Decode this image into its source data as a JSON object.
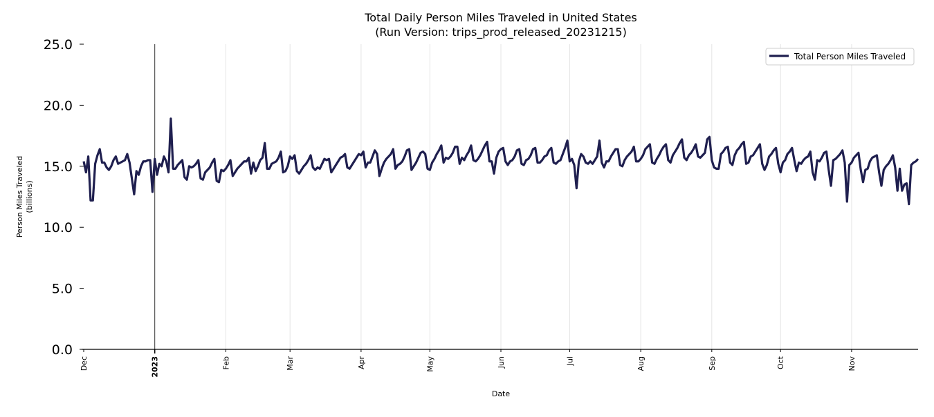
{
  "chart_data": {
    "type": "line",
    "title": "Total Daily Person Miles Traveled in United States",
    "subtitle": "(Run Version: trips_prod_released_20231215)",
    "xlabel": "Date",
    "ylabel": "Person Miles Traveled",
    "ylabel_unit": "(billions)",
    "ylim": [
      0,
      25
    ],
    "yticks": [
      "0.0",
      "5.0",
      "10.0",
      "15.0",
      "20.0",
      "25.0"
    ],
    "xticks": [
      "Dec",
      "2023",
      "Feb",
      "Mar",
      "Apr",
      "May",
      "Jun",
      "Jul",
      "Aug",
      "Sep",
      "Oct",
      "Nov"
    ],
    "grid": "vertical at month ticks",
    "legend_position": "top-right",
    "line_color": "#1f1f4f",
    "series": [
      {
        "name": "Total Person Miles Traveled",
        "months": [
          {
            "month": "2022-12",
            "values": [
              15.4,
              14.5,
              15.8,
              12.2,
              12.2,
              15.2,
              15.9,
              16.4,
              15.3,
              15.3,
              14.9,
              14.7,
              15.0,
              15.5,
              15.8,
              15.2,
              15.3,
              15.4,
              15.5,
              16.0,
              15.3,
              14.0,
              12.7,
              14.6,
              14.3,
              15.0,
              15.4,
              15.4,
              15.5,
              15.5,
              12.9
            ]
          },
          {
            "month": "2023-01",
            "values": [
              15.6,
              14.3,
              15.2,
              15.0,
              15.8,
              15.4,
              14.5,
              18.9,
              14.8,
              14.8,
              15.1,
              15.3,
              15.5,
              14.1,
              13.9,
              15.0,
              14.9,
              15.0,
              15.2,
              15.5,
              14.0,
              13.9,
              14.5,
              14.7,
              14.9,
              15.3,
              15.6,
              13.8,
              13.7,
              14.7,
              14.6
            ]
          },
          {
            "month": "2023-02",
            "values": [
              14.8,
              15.1,
              15.5,
              14.2,
              14.5,
              14.8,
              15.0,
              15.2,
              15.4,
              15.4,
              15.7,
              14.4,
              15.3,
              14.6,
              15.0,
              15.5,
              15.7,
              16.9,
              14.8,
              14.8,
              15.2,
              15.3,
              15.4,
              15.7,
              16.2,
              14.5,
              14.6,
              15.0
            ]
          },
          {
            "month": "2023-03",
            "values": [
              15.8,
              15.6,
              15.9,
              14.6,
              14.4,
              14.7,
              15.0,
              15.2,
              15.5,
              15.9,
              14.9,
              14.7,
              14.9,
              14.8,
              15.2,
              15.6,
              15.5,
              15.6,
              14.5,
              14.8,
              15.1,
              15.4,
              15.7,
              15.8,
              16.0,
              14.9,
              14.8,
              15.1,
              15.4,
              15.7,
              16.0
            ]
          },
          {
            "month": "2023-04",
            "values": [
              15.9,
              16.2,
              14.9,
              15.3,
              15.3,
              15.8,
              16.3,
              16.0,
              14.2,
              14.8,
              15.3,
              15.6,
              15.8,
              16.0,
              16.4,
              14.8,
              15.1,
              15.2,
              15.4,
              15.8,
              16.3,
              16.4,
              14.7,
              15.0,
              15.3,
              15.7,
              16.1,
              16.2,
              16.0,
              14.8
            ]
          },
          {
            "month": "2023-05",
            "values": [
              14.7,
              15.3,
              15.6,
              16.0,
              16.3,
              16.7,
              15.3,
              15.7,
              15.6,
              15.8,
              16.1,
              16.6,
              16.6,
              15.2,
              15.7,
              15.5,
              15.9,
              16.2,
              16.7,
              15.5,
              15.4,
              15.6,
              15.9,
              16.3,
              16.7,
              17.0,
              15.4,
              15.4,
              14.4,
              15.7,
              16.2
            ]
          },
          {
            "month": "2023-06",
            "values": [
              16.4,
              16.5,
              15.4,
              15.1,
              15.4,
              15.5,
              15.8,
              16.3,
              16.4,
              15.2,
              15.1,
              15.5,
              15.6,
              15.9,
              16.4,
              16.5,
              15.3,
              15.3,
              15.5,
              15.8,
              15.9,
              16.3,
              16.5,
              15.3,
              15.2,
              15.4,
              15.5,
              16.0,
              16.5,
              17.1
            ]
          },
          {
            "month": "2023-07",
            "values": [
              15.4,
              15.6,
              15.1,
              13.2,
              15.4,
              16.0,
              15.8,
              15.3,
              15.2,
              15.4,
              15.2,
              15.5,
              15.8,
              17.1,
              15.3,
              14.9,
              15.4,
              15.4,
              15.8,
              16.1,
              16.4,
              16.4,
              15.1,
              15.0,
              15.5,
              15.8,
              16.0,
              16.2,
              16.6,
              15.4,
              15.4
            ]
          },
          {
            "month": "2023-08",
            "values": [
              15.6,
              15.9,
              16.4,
              16.6,
              16.8,
              15.3,
              15.2,
              15.6,
              15.9,
              16.3,
              16.6,
              16.8,
              15.5,
              15.3,
              15.9,
              16.2,
              16.5,
              16.9,
              17.2,
              15.7,
              15.5,
              15.9,
              16.1,
              16.4,
              16.8,
              15.8,
              15.7,
              15.9,
              16.1,
              17.2,
              17.4
            ]
          },
          {
            "month": "2023-09",
            "values": [
              15.5,
              14.9,
              14.8,
              14.8,
              16.0,
              16.2,
              16.5,
              16.6,
              15.3,
              15.1,
              15.9,
              16.3,
              16.5,
              16.8,
              17.0,
              15.2,
              15.3,
              15.8,
              15.9,
              16.2,
              16.5,
              16.8,
              15.2,
              14.7,
              15.1,
              15.8,
              16.0,
              16.3,
              16.5,
              15.2
            ]
          },
          {
            "month": "2023-10",
            "values": [
              14.5,
              15.3,
              15.5,
              16.0,
              16.2,
              16.5,
              15.5,
              14.6,
              15.3,
              15.2,
              15.5,
              15.7,
              15.8,
              16.2,
              14.5,
              13.9,
              15.5,
              15.4,
              15.7,
              16.1,
              16.2,
              14.7,
              13.4,
              15.5,
              15.6,
              15.8,
              16.0,
              16.3,
              15.3,
              12.1,
              15.1
            ]
          },
          {
            "month": "2023-11",
            "values": [
              15.3,
              15.7,
              15.9,
              16.1,
              14.7,
              13.7,
              14.7,
              14.8,
              15.4,
              15.7,
              15.8,
              15.9,
              14.5,
              13.4,
              14.7,
              15.0,
              15.2,
              15.5,
              15.9,
              14.9,
              13.0,
              14.8,
              13.0,
              13.5,
              13.6,
              11.9,
              15.1,
              15.3,
              15.4,
              15.6
            ]
          }
        ]
      }
    ]
  }
}
